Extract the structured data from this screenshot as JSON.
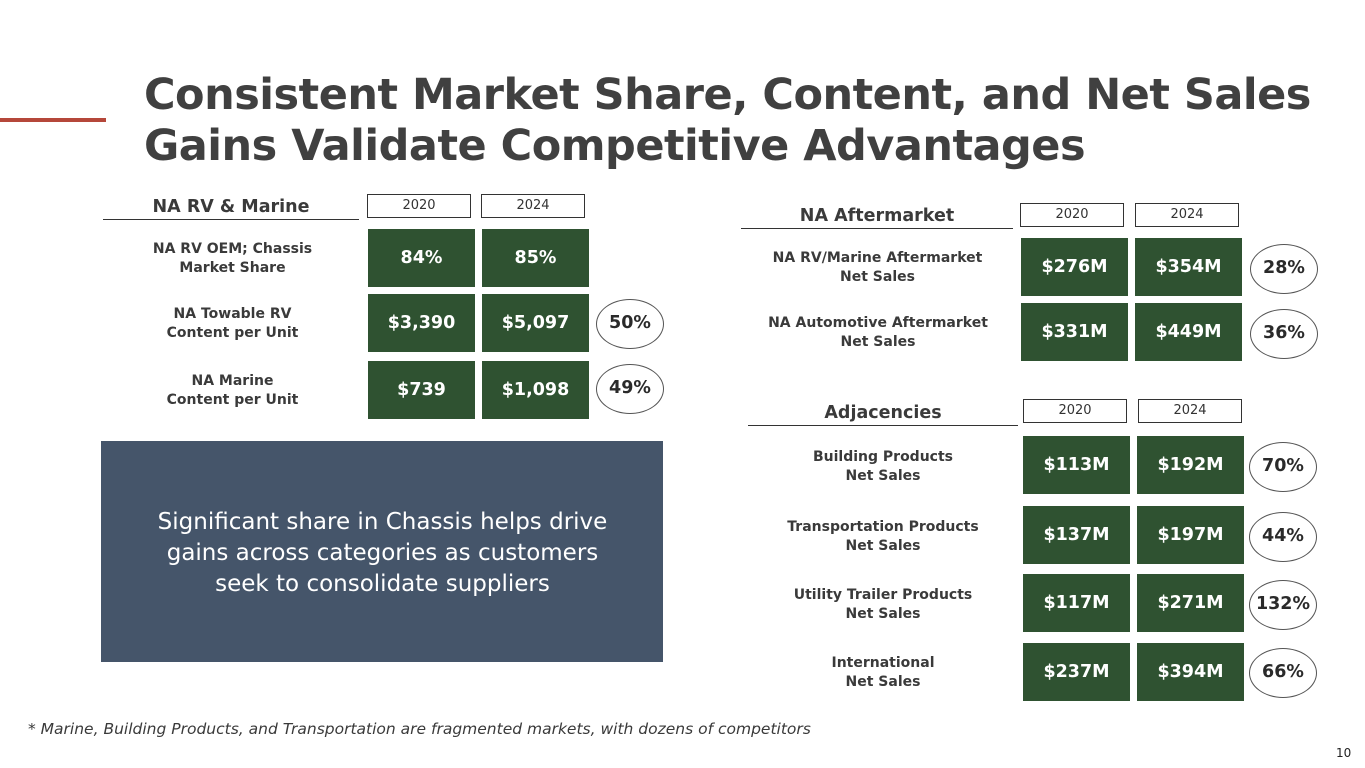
{
  "title": {
    "line1": "Consistent Market Share, Content, and Net Sales",
    "line2": "Gains Validate Competitive Advantages"
  },
  "colors": {
    "accent_line": "#b5473a",
    "value_box": "#2f5231",
    "callout_bg": "#45556a"
  },
  "rv_marine": {
    "heading": "NA RV & Marine",
    "year_a": "2020",
    "year_b": "2024",
    "rows": [
      {
        "label_1": "NA RV OEM; Chassis",
        "label_2": "Market Share",
        "v2020": "84%",
        "v2024": "85%",
        "change": ""
      },
      {
        "label_1": "NA Towable RV",
        "label_2": "Content per Unit",
        "v2020": "$3,390",
        "v2024": "$5,097",
        "change": "50%"
      },
      {
        "label_1": "NA Marine",
        "label_2": "Content per Unit",
        "v2020": "$739",
        "v2024": "$1,098",
        "change": "49%"
      }
    ]
  },
  "aftermarket": {
    "heading": "NA Aftermarket",
    "year_a": "2020",
    "year_b": "2024",
    "rows": [
      {
        "label_1": "NA RV/Marine Aftermarket",
        "label_2": "Net Sales",
        "v2020": "$276M",
        "v2024": "$354M",
        "change": "28%"
      },
      {
        "label_1": "NA Automotive Aftermarket",
        "label_2": "Net Sales",
        "v2020": "$331M",
        "v2024": "$449M",
        "change": "36%"
      }
    ]
  },
  "adjacencies": {
    "heading": "Adjacencies",
    "year_a": "2020",
    "year_b": "2024",
    "rows": [
      {
        "label_1": "Building Products",
        "label_2": "Net Sales",
        "v2020": "$113M",
        "v2024": "$192M",
        "change": "70%"
      },
      {
        "label_1": "Transportation Products",
        "label_2": "Net Sales",
        "v2020": "$137M",
        "v2024": "$197M",
        "change": "44%"
      },
      {
        "label_1": "Utility Trailer Products",
        "label_2": "Net Sales",
        "v2020": "$117M",
        "v2024": "$271M",
        "change": "132%"
      },
      {
        "label_1": "International",
        "label_2": "Net Sales",
        "v2020": "$237M",
        "v2024": "$394M",
        "change": "66%"
      }
    ]
  },
  "callout": {
    "line1": "Significant share in Chassis helps drive",
    "line2": "gains across categories as customers",
    "line3": "seek to consolidate suppliers"
  },
  "footnote": "* Marine, Building Products, and Transportation are fragmented markets, with dozens of competitors",
  "page_number": "10"
}
